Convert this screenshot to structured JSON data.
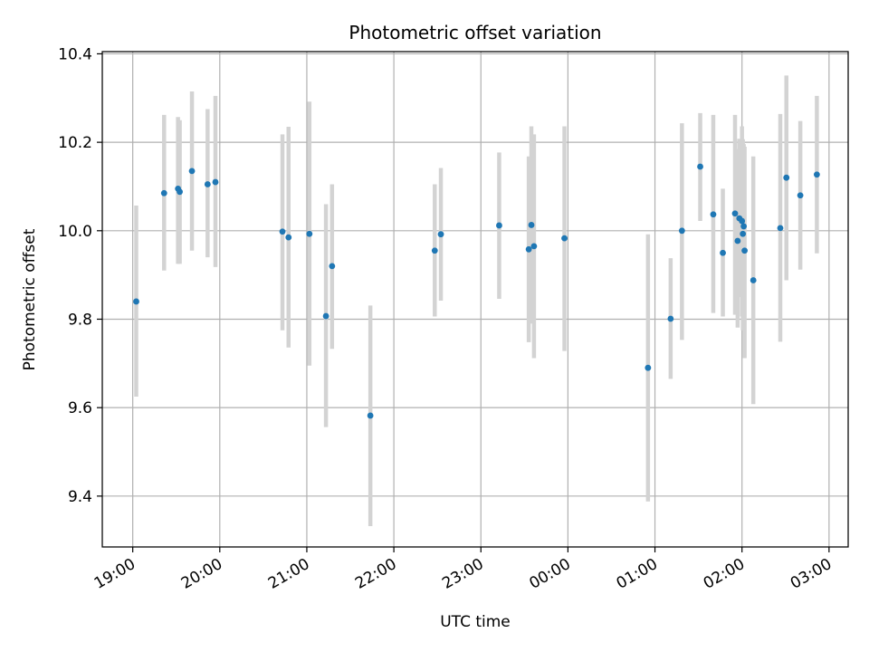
{
  "chart_data": {
    "type": "scatter",
    "title": "Photometric offset variation",
    "xlabel": "UTC time",
    "ylabel": "Photometric offset",
    "x_unit": "hours after 19:00 UTC",
    "xlim": [
      -0.35,
      8.22
    ],
    "ylim": [
      9.285,
      10.405
    ],
    "x_ticks": [
      {
        "value": 0,
        "label": "19:00"
      },
      {
        "value": 1,
        "label": "20:00"
      },
      {
        "value": 2,
        "label": "21:00"
      },
      {
        "value": 3,
        "label": "22:00"
      },
      {
        "value": 4,
        "label": "23:00"
      },
      {
        "value": 5,
        "label": "00:00"
      },
      {
        "value": 6,
        "label": "01:00"
      },
      {
        "value": 7,
        "label": "02:00"
      },
      {
        "value": 8,
        "label": "03:00"
      }
    ],
    "y_ticks": [
      {
        "value": 9.4,
        "label": "9.4"
      },
      {
        "value": 9.6,
        "label": "9.6"
      },
      {
        "value": 9.8,
        "label": "9.8"
      },
      {
        "value": 10.0,
        "label": "10.0"
      },
      {
        "value": 10.2,
        "label": "10.2"
      },
      {
        "value": 10.4,
        "label": "10.4"
      }
    ],
    "grid": true,
    "colors": {
      "points": "#1f77b4",
      "errorbars": "#d3d3d3",
      "grid": "#b0b0b0"
    },
    "points": [
      {
        "x": 0.04,
        "y": 9.84,
        "lo": 9.625,
        "hi": 10.057
      },
      {
        "x": 0.36,
        "y": 10.085,
        "lo": 9.91,
        "hi": 10.262
      },
      {
        "x": 0.52,
        "y": 10.095,
        "lo": 9.925,
        "hi": 10.257
      },
      {
        "x": 0.54,
        "y": 10.088,
        "lo": 9.925,
        "hi": 10.25
      },
      {
        "x": 0.68,
        "y": 10.135,
        "lo": 9.955,
        "hi": 10.315
      },
      {
        "x": 0.86,
        "y": 10.105,
        "lo": 9.94,
        "hi": 10.275
      },
      {
        "x": 0.95,
        "y": 10.11,
        "lo": 9.918,
        "hi": 10.305
      },
      {
        "x": 1.72,
        "y": 9.998,
        "lo": 9.775,
        "hi": 10.218
      },
      {
        "x": 1.79,
        "y": 9.985,
        "lo": 9.736,
        "hi": 10.235
      },
      {
        "x": 2.03,
        "y": 9.993,
        "lo": 9.695,
        "hi": 10.292
      },
      {
        "x": 2.22,
        "y": 9.807,
        "lo": 9.556,
        "hi": 10.06
      },
      {
        "x": 2.29,
        "y": 9.92,
        "lo": 9.733,
        "hi": 10.105
      },
      {
        "x": 2.73,
        "y": 9.582,
        "lo": 9.332,
        "hi": 9.831
      },
      {
        "x": 3.47,
        "y": 9.955,
        "lo": 9.806,
        "hi": 10.105
      },
      {
        "x": 3.54,
        "y": 9.992,
        "lo": 9.842,
        "hi": 10.142
      },
      {
        "x": 4.21,
        "y": 10.012,
        "lo": 9.846,
        "hi": 10.177
      },
      {
        "x": 4.55,
        "y": 9.958,
        "lo": 9.748,
        "hi": 10.168
      },
      {
        "x": 4.58,
        "y": 10.013,
        "lo": 9.79,
        "hi": 10.236
      },
      {
        "x": 4.61,
        "y": 9.965,
        "lo": 9.712,
        "hi": 10.218
      },
      {
        "x": 4.96,
        "y": 9.983,
        "lo": 9.728,
        "hi": 10.236
      },
      {
        "x": 5.92,
        "y": 9.69,
        "lo": 9.388,
        "hi": 9.992
      },
      {
        "x": 6.18,
        "y": 9.801,
        "lo": 9.665,
        "hi": 9.938
      },
      {
        "x": 6.31,
        "y": 10.0,
        "lo": 9.753,
        "hi": 10.243
      },
      {
        "x": 6.52,
        "y": 10.145,
        "lo": 10.022,
        "hi": 10.266
      },
      {
        "x": 6.67,
        "y": 10.037,
        "lo": 9.814,
        "hi": 10.262
      },
      {
        "x": 6.78,
        "y": 9.95,
        "lo": 9.806,
        "hi": 10.095
      },
      {
        "x": 6.92,
        "y": 10.039,
        "lo": 9.81,
        "hi": 10.262
      },
      {
        "x": 6.95,
        "y": 9.977,
        "lo": 9.781,
        "hi": 10.185
      },
      {
        "x": 6.97,
        "y": 10.028,
        "lo": 9.85,
        "hi": 10.208
      },
      {
        "x": 7.0,
        "y": 10.022,
        "lo": 9.806,
        "hi": 10.236
      },
      {
        "x": 7.01,
        "y": 9.993,
        "lo": 9.775,
        "hi": 10.207
      },
      {
        "x": 7.02,
        "y": 10.01,
        "lo": 9.823,
        "hi": 10.196
      },
      {
        "x": 7.03,
        "y": 9.955,
        "lo": 9.712,
        "hi": 10.19
      },
      {
        "x": 7.13,
        "y": 9.888,
        "lo": 9.608,
        "hi": 10.168
      },
      {
        "x": 7.44,
        "y": 10.006,
        "lo": 9.749,
        "hi": 10.264
      },
      {
        "x": 7.51,
        "y": 10.12,
        "lo": 9.888,
        "hi": 10.351
      },
      {
        "x": 7.67,
        "y": 10.08,
        "lo": 9.912,
        "hi": 10.248
      },
      {
        "x": 7.86,
        "y": 10.127,
        "lo": 9.949,
        "hi": 10.305
      }
    ]
  }
}
